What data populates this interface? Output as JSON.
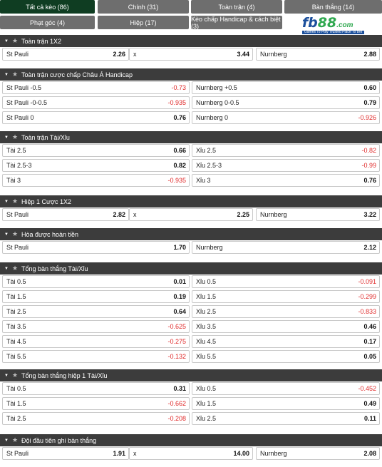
{
  "tabs": [
    {
      "label": "Tất cả kèo (86)",
      "active": true
    },
    {
      "label": "Chính (31)",
      "active": false
    },
    {
      "label": "Toàn trận (4)",
      "active": false
    },
    {
      "label": "Bàn thắng (14)",
      "active": false
    },
    {
      "label": "Phạt góc (4)",
      "active": false
    },
    {
      "label": "Hiệp (17)",
      "active": false
    },
    {
      "label": "Kèo chấp Handicap & cách biệt (3)",
      "active": false
    }
  ],
  "logo": {
    "brand_fb": "fb",
    "brand_88": "88",
    "brand_com": ".com",
    "tagline": "Games To Play   Trusted Place To Bet"
  },
  "colors": {
    "active_tab": "#0f3d22",
    "tab": "#6e6e6e",
    "header": "#3c3c3c",
    "negative": "#e02b2b"
  },
  "sections": [
    {
      "title": "Toàn trận 1X2",
      "type": "three",
      "rows": [
        [
          {
            "label": "St Pauli",
            "value": "2.26"
          },
          {
            "label": "x",
            "value": "3.44"
          },
          {
            "label": "Nurnberg",
            "value": "2.88"
          }
        ]
      ]
    },
    {
      "title": "Toàn trận cược chấp Châu Á Handicap",
      "type": "two",
      "rows": [
        [
          {
            "label": "St Pauli -0.5",
            "value": "-0.73"
          },
          {
            "label": "Nurnberg +0.5",
            "value": "0.60"
          }
        ],
        [
          {
            "label": "St Pauli -0-0.5",
            "value": "-0.935"
          },
          {
            "label": "Nurnberg 0-0.5",
            "value": "0.79"
          }
        ],
        [
          {
            "label": "St Pauli 0",
            "value": "0.76"
          },
          {
            "label": "Nurnberg 0",
            "value": "-0.926"
          }
        ]
      ]
    },
    {
      "title": "Toàn trận Tài/Xỉu",
      "type": "two",
      "rows": [
        [
          {
            "label": "Tài 2.5",
            "value": "0.66"
          },
          {
            "label": "Xỉu 2.5",
            "value": "-0.82"
          }
        ],
        [
          {
            "label": "Tài 2.5-3",
            "value": "0.82"
          },
          {
            "label": "Xỉu 2.5-3",
            "value": "-0.99"
          }
        ],
        [
          {
            "label": "Tài 3",
            "value": "-0.935"
          },
          {
            "label": "Xỉu 3",
            "value": "0.76"
          }
        ]
      ]
    },
    {
      "title": "Hiệp 1 Cược 1X2",
      "type": "three",
      "rows": [
        [
          {
            "label": "St Pauli",
            "value": "2.82"
          },
          {
            "label": "x",
            "value": "2.25"
          },
          {
            "label": "Nurnberg",
            "value": "3.22"
          }
        ]
      ]
    },
    {
      "title": "Hòa được hoàn tiền",
      "type": "two",
      "rows": [
        [
          {
            "label": "St Pauli",
            "value": "1.70"
          },
          {
            "label": "Nurnberg",
            "value": "2.12"
          }
        ]
      ]
    },
    {
      "title": "Tổng bàn thắng Tài/Xỉu",
      "type": "two",
      "rows": [
        [
          {
            "label": "Tài 0.5",
            "value": "0.01"
          },
          {
            "label": "Xỉu 0.5",
            "value": "-0.091"
          }
        ],
        [
          {
            "label": "Tài 1.5",
            "value": "0.19"
          },
          {
            "label": "Xỉu 1.5",
            "value": "-0.299"
          }
        ],
        [
          {
            "label": "Tài 2.5",
            "value": "0.64"
          },
          {
            "label": "Xỉu 2.5",
            "value": "-0.833"
          }
        ],
        [
          {
            "label": "Tài 3.5",
            "value": "-0.625"
          },
          {
            "label": "Xỉu 3.5",
            "value": "0.46"
          }
        ],
        [
          {
            "label": "Tài 4.5",
            "value": "-0.275"
          },
          {
            "label": "Xỉu 4.5",
            "value": "0.17"
          }
        ],
        [
          {
            "label": "Tài 5.5",
            "value": "-0.132"
          },
          {
            "label": "Xỉu 5.5",
            "value": "0.05"
          }
        ]
      ]
    },
    {
      "title": "Tổng bàn thắng hiệp 1 Tài/Xỉu",
      "type": "two",
      "rows": [
        [
          {
            "label": "Tài 0.5",
            "value": "0.31"
          },
          {
            "label": "Xỉu 0.5",
            "value": "-0.452"
          }
        ],
        [
          {
            "label": "Tài 1.5",
            "value": "-0.662"
          },
          {
            "label": "Xỉu 1.5",
            "value": "0.49"
          }
        ],
        [
          {
            "label": "Tài 2.5",
            "value": "-0.208"
          },
          {
            "label": "Xỉu 2.5",
            "value": "0.11"
          }
        ]
      ]
    },
    {
      "title": "Đội đầu tiên ghi bàn thắng",
      "type": "three",
      "rows": [
        [
          {
            "label": "St Pauli",
            "value": "1.91"
          },
          {
            "label": "x",
            "value": "14.00"
          },
          {
            "label": "Nurnberg",
            "value": "2.08"
          }
        ]
      ]
    }
  ]
}
